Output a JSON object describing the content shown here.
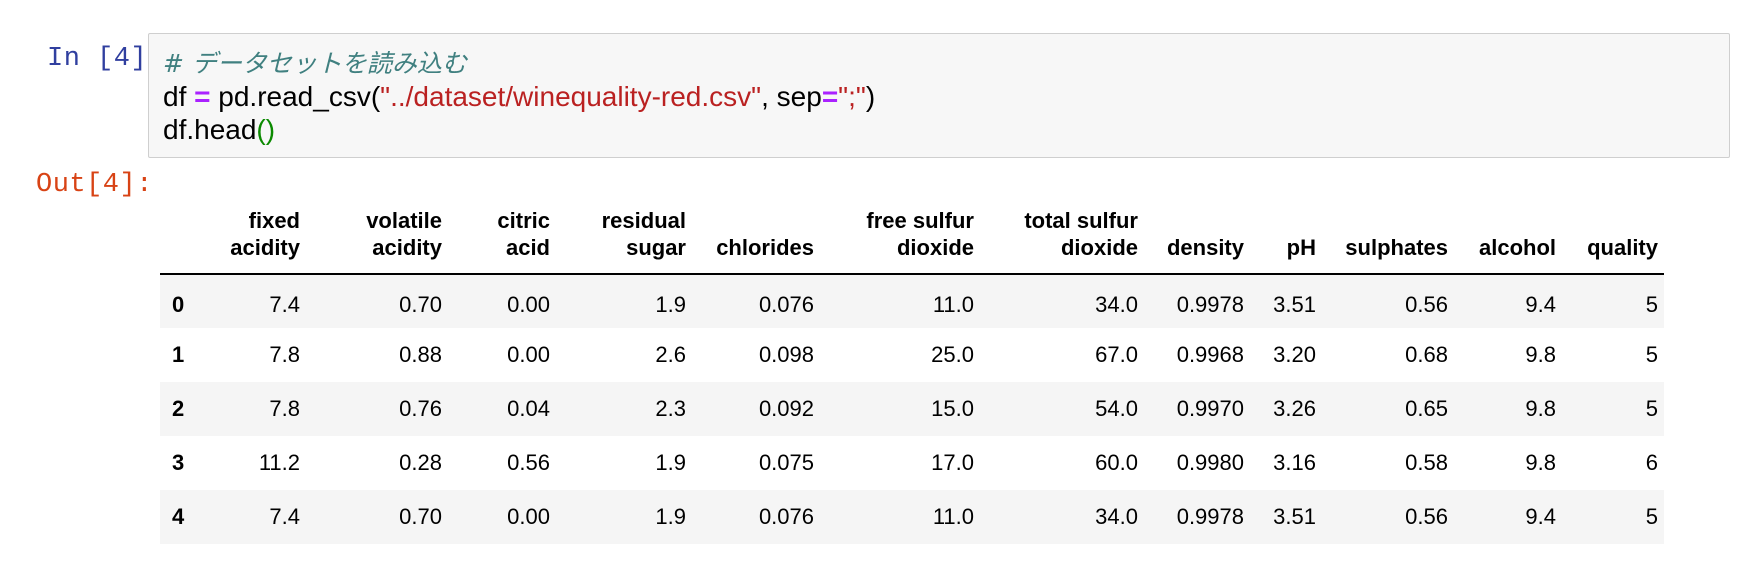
{
  "input_prompt": "In [4]:",
  "output_prompt": "Out[4]:",
  "code": {
    "comment": "# データセットを読み込む",
    "line2": {
      "var": "df",
      "op": "=",
      "call": "pd.read_csv(",
      "path": "\"../dataset/winequality-red.csv\"",
      "sep_arg": ", sep",
      "op2": "=",
      "sep_val": "\";\"",
      "close": ")"
    },
    "line3": {
      "call": "df.head",
      "parens": "()"
    }
  },
  "dataframe": {
    "columns": [
      [
        "fixed",
        "acidity"
      ],
      [
        "volatile",
        "acidity"
      ],
      [
        "citric",
        "acid"
      ],
      [
        "residual",
        "sugar"
      ],
      [
        "chlorides",
        ""
      ],
      [
        "free sulfur",
        "dioxide"
      ],
      [
        "total sulfur",
        "dioxide"
      ],
      [
        "density",
        ""
      ],
      [
        "pH",
        ""
      ],
      [
        "sulphates",
        ""
      ],
      [
        "alcohol",
        ""
      ],
      [
        "quality",
        ""
      ]
    ],
    "index": [
      "0",
      "1",
      "2",
      "3",
      "4"
    ],
    "rows": [
      [
        "7.4",
        "0.70",
        "0.00",
        "1.9",
        "0.076",
        "11.0",
        "34.0",
        "0.9978",
        "3.51",
        "0.56",
        "9.4",
        "5"
      ],
      [
        "7.8",
        "0.88",
        "0.00",
        "2.6",
        "0.098",
        "25.0",
        "67.0",
        "0.9968",
        "3.20",
        "0.68",
        "9.8",
        "5"
      ],
      [
        "7.8",
        "0.76",
        "0.04",
        "2.3",
        "0.092",
        "15.0",
        "54.0",
        "0.9970",
        "3.26",
        "0.65",
        "9.8",
        "5"
      ],
      [
        "11.2",
        "0.28",
        "0.56",
        "1.9",
        "0.075",
        "17.0",
        "60.0",
        "0.9980",
        "3.16",
        "0.58",
        "9.8",
        "6"
      ],
      [
        "7.4",
        "0.70",
        "0.00",
        "1.9",
        "0.076",
        "11.0",
        "34.0",
        "0.9978",
        "3.51",
        "0.56",
        "9.4",
        "5"
      ]
    ]
  }
}
